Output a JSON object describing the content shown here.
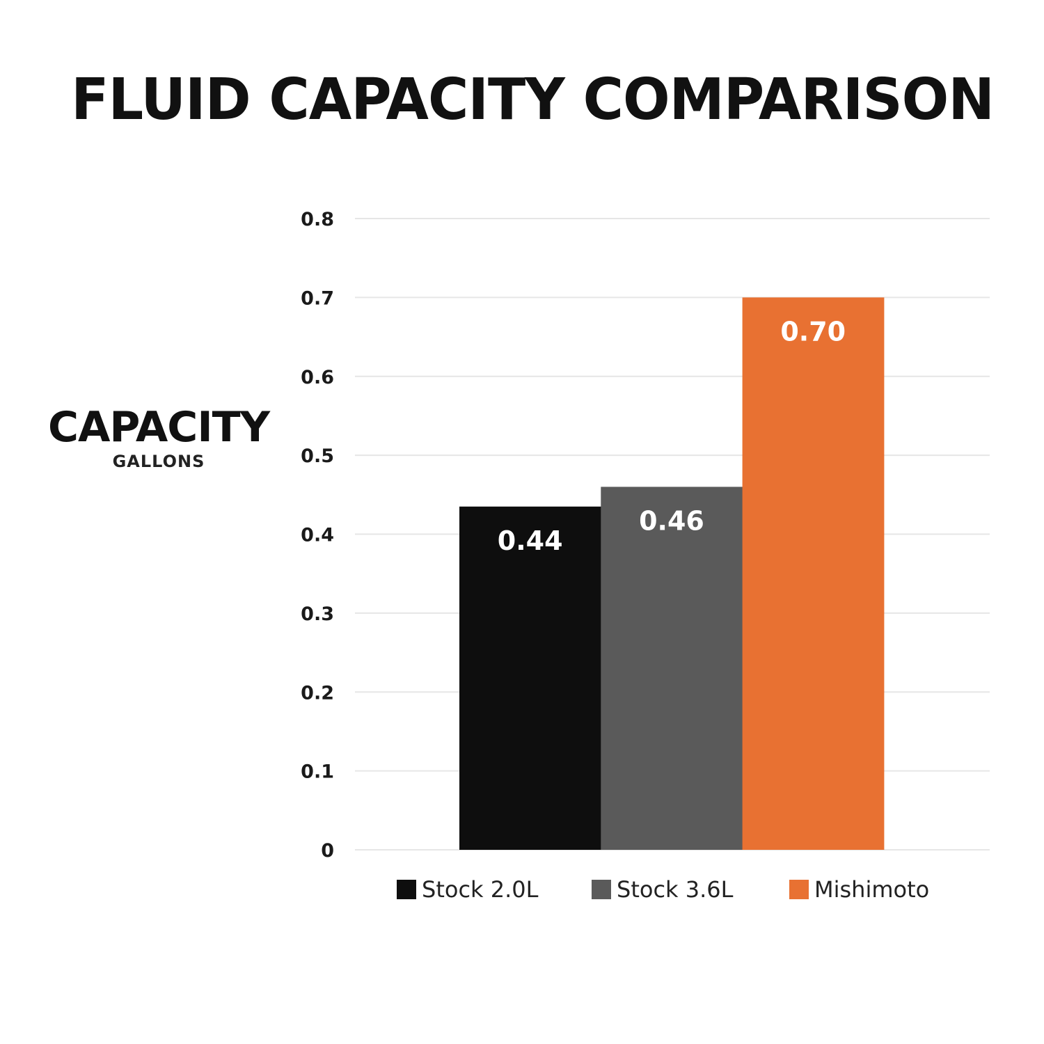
{
  "chart_data": {
    "type": "bar",
    "title": "FLUID CAPACITY COMPARISON",
    "ylabel": "CAPACITY",
    "ylabel_unit": "GALLONS",
    "xlabel": "",
    "ylim": [
      0,
      0.8
    ],
    "yticks": [
      "0",
      "0.1",
      "0.2",
      "0.3",
      "0.4",
      "0.5",
      "0.6",
      "0.7",
      "0.8"
    ],
    "grid": true,
    "legend_position": "bottom",
    "series": [
      {
        "name": "Stock 2.0L",
        "value": 0.435,
        "label": "0.44",
        "color": "#0e0e0e"
      },
      {
        "name": "Stock 3.6L",
        "value": 0.46,
        "label": "0.46",
        "color": "#5a5a5a"
      },
      {
        "name": "Mishimoto",
        "value": 0.7,
        "label": "0.70",
        "color": "#e87132"
      }
    ]
  }
}
